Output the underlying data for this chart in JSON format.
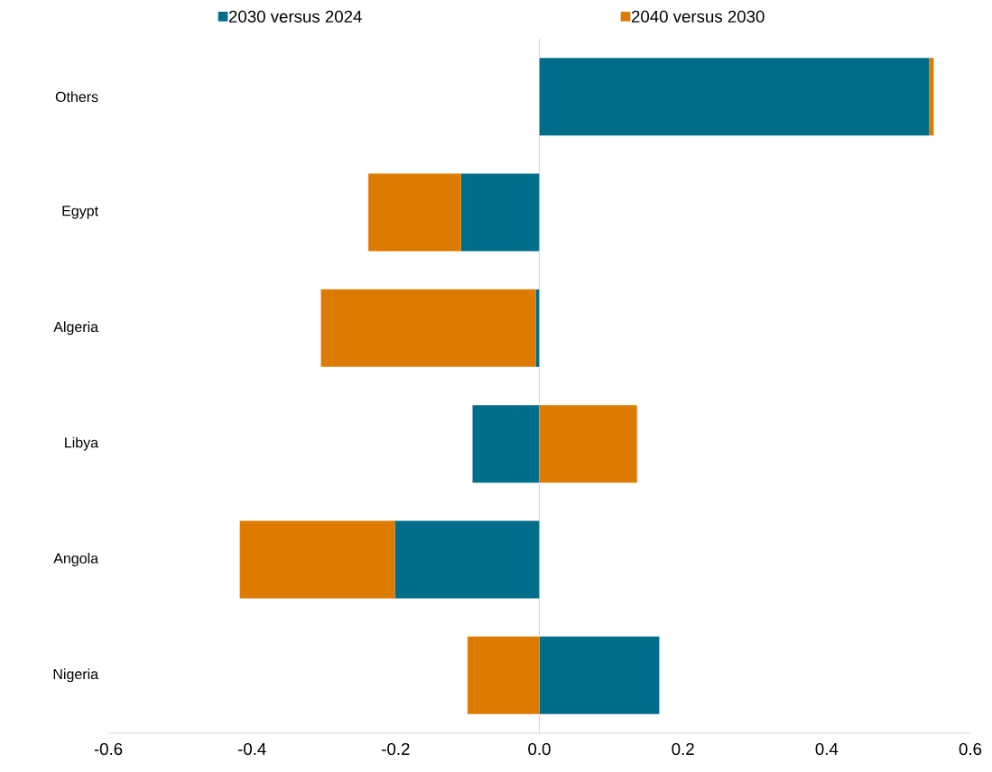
{
  "chart_data": {
    "type": "bar",
    "orientation": "horizontal",
    "stacked": true,
    "legend": "top",
    "categories": [
      "Others",
      "Egypt",
      "Algeria",
      "Libya",
      "Angola",
      "Nigeria"
    ],
    "series": [
      {
        "name": "2030 versus 2024",
        "color": "#006e8a",
        "values": [
          0.543,
          -0.109,
          -0.005,
          -0.093,
          -0.201,
          0.167
        ]
      },
      {
        "name": "2040 versus 2030",
        "color": "#dd7a00",
        "values": [
          0.006,
          -0.129,
          -0.299,
          0.136,
          -0.216,
          -0.1
        ]
      }
    ],
    "xlim": [
      -0.6,
      0.6
    ],
    "xticks": [
      -0.6,
      -0.4,
      -0.2,
      {
        "value": 0,
        "label": "0.0"
      },
      0.2,
      0.4,
      0.6
    ]
  }
}
